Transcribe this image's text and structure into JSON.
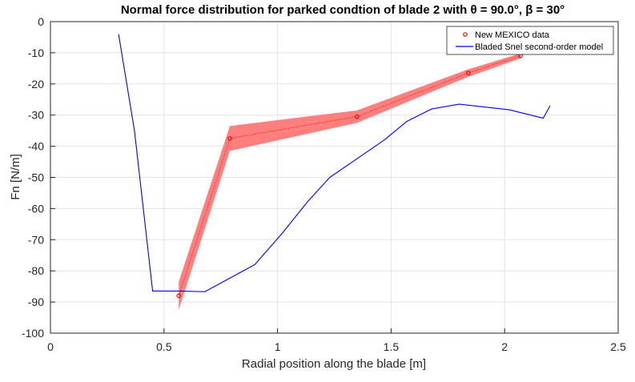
{
  "chart_data": {
    "type": "line",
    "title": "Normal force distribution for parked condtion of blade 2 with θ = 90.0°, β = 30°",
    "xlabel": "Radial position along the blade [m]",
    "ylabel": "Fn [N/m]",
    "xlim": [
      0,
      2.5
    ],
    "ylim": [
      -100,
      0
    ],
    "x_ticks": [
      "0",
      "0.5",
      "1",
      "1.5",
      "2",
      "2.5"
    ],
    "y_ticks": [
      "0",
      "-10",
      "-20",
      "-30",
      "-40",
      "-50",
      "-60",
      "-70",
      "-80",
      "-90",
      "-100"
    ],
    "grid": true,
    "legend_position": "top-right",
    "series": [
      {
        "name": "New MEXICO data",
        "style": "markers-with-band",
        "color": "#ff0000",
        "band_color": "#ff7f7f",
        "x": [
          0.565,
          0.79,
          1.35,
          1.84,
          2.07
        ],
        "y": [
          -88.0,
          -37.5,
          -30.5,
          -16.5,
          -11.0
        ],
        "y_lower": [
          -92.5,
          -41.5,
          -32.5,
          -17.7,
          -11.8
        ],
        "y_upper": [
          -83.5,
          -33.5,
          -28.5,
          -15.3,
          -10.2
        ]
      },
      {
        "name": "Bladed Snel second-order model",
        "style": "line",
        "color": "#0000ff",
        "x": [
          0.3,
          0.37,
          0.45,
          0.57,
          0.68,
          0.9,
          1.02,
          1.13,
          1.23,
          1.35,
          1.47,
          1.57,
          1.68,
          1.8,
          2.02,
          2.17,
          2.2
        ],
        "y": [
          -4,
          -35,
          -86.5,
          -86.5,
          -86.7,
          -78,
          -68,
          -58,
          -50,
          -44,
          -38,
          -32,
          -28,
          -26.5,
          -28.3,
          -31,
          -27
        ]
      }
    ]
  }
}
